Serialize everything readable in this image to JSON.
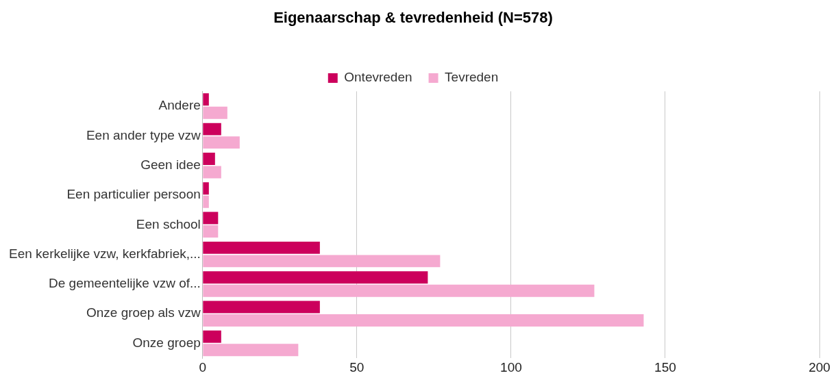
{
  "chart_data": {
    "type": "bar",
    "orientation": "horizontal",
    "title": "Eigenaarschap & tevredenheid (N=578)",
    "categories": [
      "Andere",
      "Een ander type vzw",
      "Geen idee",
      "Een particulier persoon",
      "Een school",
      "Een kerkelijke vzw, kerkfabriek,...",
      "De gemeentelijke vzw of...",
      "Onze groep als vzw",
      "Onze groep"
    ],
    "series": [
      {
        "name": "Ontevreden",
        "color": "#cc005c",
        "values": [
          2,
          6,
          4,
          2,
          5,
          38,
          73,
          38,
          6
        ]
      },
      {
        "name": "Tevreden",
        "color": "#f5a9d0",
        "values": [
          8,
          12,
          6,
          2,
          5,
          77,
          127,
          143,
          31
        ]
      }
    ],
    "xlim": [
      0,
      200
    ],
    "xticks": [
      0,
      50,
      100,
      150,
      200
    ],
    "grid": "x",
    "legend": "top"
  }
}
